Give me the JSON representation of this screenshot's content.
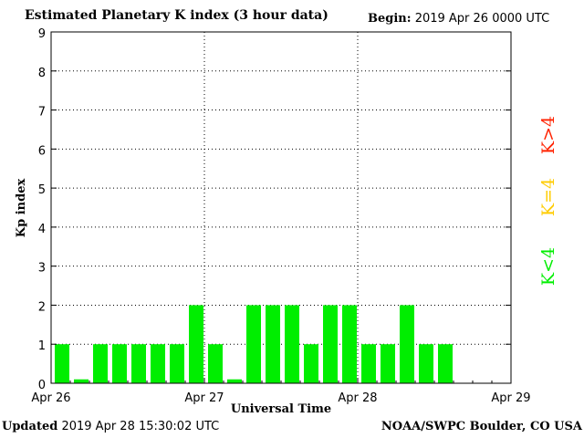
{
  "header": {
    "title": "Estimated Planetary K index (3 hour data)",
    "begin_label": "Begin:",
    "begin_value": "2019 Apr 26 0000 UTC"
  },
  "footer": {
    "updated_label": "Updated",
    "updated_value": "2019 Apr 28 15:30:02 UTC",
    "credit": "NOAA/SWPC Boulder, CO USA"
  },
  "legend": [
    {
      "label": "K>4",
      "color": "#ff2200"
    },
    {
      "label": "K=4",
      "color": "#ffcc00"
    },
    {
      "label": "K<4",
      "color": "#00ee00"
    }
  ],
  "chart_data": {
    "type": "bar",
    "title": "Estimated Planetary K index (3 hour data)",
    "xlabel": "Universal Time",
    "ylabel": "Kp index",
    "ylim": [
      0,
      9
    ],
    "yticks": [
      "0",
      "1",
      "2",
      "3",
      "4",
      "5",
      "6",
      "7",
      "8",
      "9"
    ],
    "xticks": [
      "Apr 26",
      "Apr 27",
      "Apr 28",
      "Apr 29"
    ],
    "grid": true,
    "bar_color": "#00ee00",
    "values": [
      1,
      0.1,
      1,
      1,
      1,
      1,
      1,
      2,
      1,
      0.1,
      2,
      2,
      2,
      1,
      2,
      2,
      1,
      1,
      2,
      1,
      1
    ]
  }
}
